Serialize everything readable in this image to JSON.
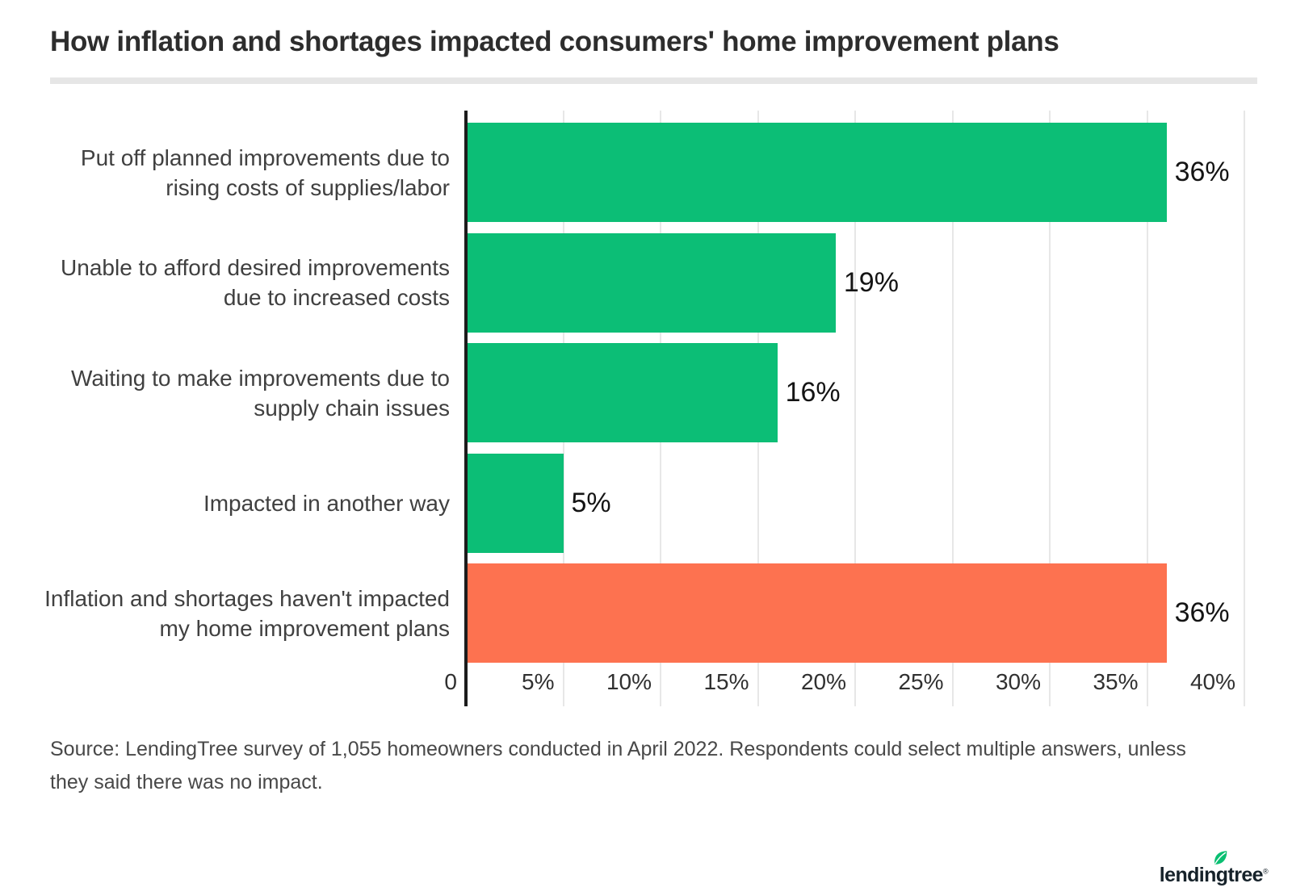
{
  "header": {
    "title": "How inflation and shortages impacted consumers' home improvement plans"
  },
  "chart_data": {
    "type": "bar",
    "orientation": "horizontal",
    "title": "How inflation and shortages impacted consumers' home improvement plans",
    "categories": [
      "Put off planned improvements due to rising costs of supplies/labor",
      "Unable to afford desired improvements due to increased costs",
      "Waiting to make improvements due to supply chain issues",
      "Impacted in another way",
      "Inflation and shortages haven't impacted my home improvement plans"
    ],
    "values": [
      36,
      19,
      16,
      5,
      36
    ],
    "value_labels": [
      "36%",
      "19%",
      "16%",
      "5%",
      "36%"
    ],
    "bar_colors": [
      "#0cbe76",
      "#0cbe76",
      "#0cbe76",
      "#0cbe76",
      "#fd7250"
    ],
    "x_ticks": [
      {
        "value": 0,
        "label": "0"
      },
      {
        "value": 5,
        "label": "5%"
      },
      {
        "value": 10,
        "label": "10%"
      },
      {
        "value": 15,
        "label": "15%"
      },
      {
        "value": 20,
        "label": "20%"
      },
      {
        "value": 25,
        "label": "25%"
      },
      {
        "value": 30,
        "label": "30%"
      },
      {
        "value": 35,
        "label": "35%"
      },
      {
        "value": 40,
        "label": "40%"
      }
    ],
    "xlim": [
      0,
      40
    ],
    "grid": true,
    "legend": "none",
    "accent_green": "#0cbe76",
    "accent_orange": "#fd7250"
  },
  "source": {
    "lines": [
      "Source: LendingTree survey of 1,055 homeowners conducted in April 2022. Respondents could select multiple answers, unless",
      "they said there was no impact."
    ]
  },
  "footer": {
    "brand": "lendingtree",
    "registered_mark": "®",
    "leaf_color": "#0abf72"
  }
}
